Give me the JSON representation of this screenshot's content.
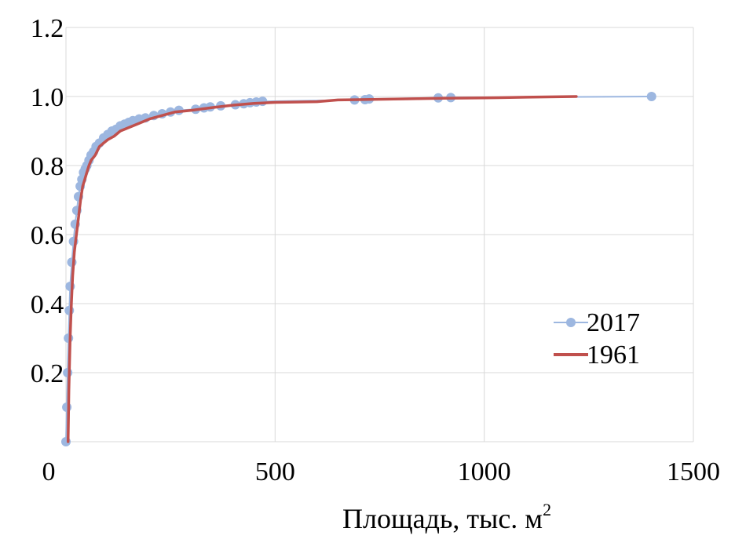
{
  "colors": {
    "series_2017": "#9db7e0",
    "series_1961": "#c0504d",
    "grid": "#d9d9d9",
    "text": "#000000"
  },
  "chart_data": {
    "type": "line",
    "title": "",
    "xlabel": "Площадь, тыс. м",
    "xlabel_superscript": "2",
    "ylabel": "",
    "xlim": [
      0,
      1500
    ],
    "ylim": [
      0,
      1.2
    ],
    "x_ticks": [
      0,
      500,
      1000,
      1500
    ],
    "x_tick_labels": [
      "0",
      "500",
      "1000",
      "1500"
    ],
    "y_ticks": [
      0.2,
      0.4,
      0.6,
      0.8,
      1.0,
      1.2
    ],
    "y_tick_labels": [
      "0.2",
      "0.4",
      "0.6",
      "0.8",
      "1.0",
      "1.2"
    ],
    "grid": true,
    "legend_position": "right",
    "series": [
      {
        "name": "2017",
        "style": "line-with-markers",
        "x": [
          0,
          2,
          4,
          6,
          8,
          10,
          14,
          18,
          22,
          26,
          30,
          34,
          38,
          42,
          46,
          50,
          55,
          60,
          66,
          72,
          80,
          90,
          100,
          110,
          120,
          130,
          140,
          150,
          160,
          175,
          190,
          210,
          230,
          250,
          270,
          310,
          330,
          345,
          370,
          405,
          425,
          440,
          455,
          470,
          690,
          715,
          725,
          890,
          920,
          1400
        ],
        "y": [
          0.0,
          0.1,
          0.2,
          0.3,
          0.38,
          0.45,
          0.52,
          0.58,
          0.63,
          0.67,
          0.71,
          0.74,
          0.76,
          0.78,
          0.79,
          0.8,
          0.815,
          0.83,
          0.84,
          0.855,
          0.865,
          0.88,
          0.89,
          0.9,
          0.905,
          0.915,
          0.92,
          0.925,
          0.93,
          0.935,
          0.938,
          0.945,
          0.95,
          0.955,
          0.96,
          0.963,
          0.967,
          0.97,
          0.973,
          0.976,
          0.979,
          0.982,
          0.984,
          0.986,
          0.99,
          0.991,
          0.993,
          0.996,
          0.997,
          1.0
        ]
      },
      {
        "name": "1961",
        "style": "line",
        "x": [
          5,
          7,
          10,
          13,
          16,
          20,
          25,
          30,
          35,
          40,
          45,
          50,
          55,
          60,
          70,
          80,
          90,
          100,
          115,
          130,
          150,
          170,
          200,
          230,
          260,
          300,
          350,
          400,
          450,
          500,
          600,
          650,
          700,
          800,
          900,
          1000,
          1100,
          1220
        ],
        "y": [
          0.0,
          0.15,
          0.3,
          0.4,
          0.48,
          0.55,
          0.6,
          0.65,
          0.7,
          0.74,
          0.76,
          0.78,
          0.8,
          0.815,
          0.83,
          0.855,
          0.865,
          0.875,
          0.885,
          0.9,
          0.91,
          0.92,
          0.935,
          0.945,
          0.955,
          0.96,
          0.968,
          0.975,
          0.98,
          0.983,
          0.985,
          0.99,
          0.991,
          0.993,
          0.995,
          0.996,
          0.998,
          1.0
        ]
      }
    ]
  }
}
